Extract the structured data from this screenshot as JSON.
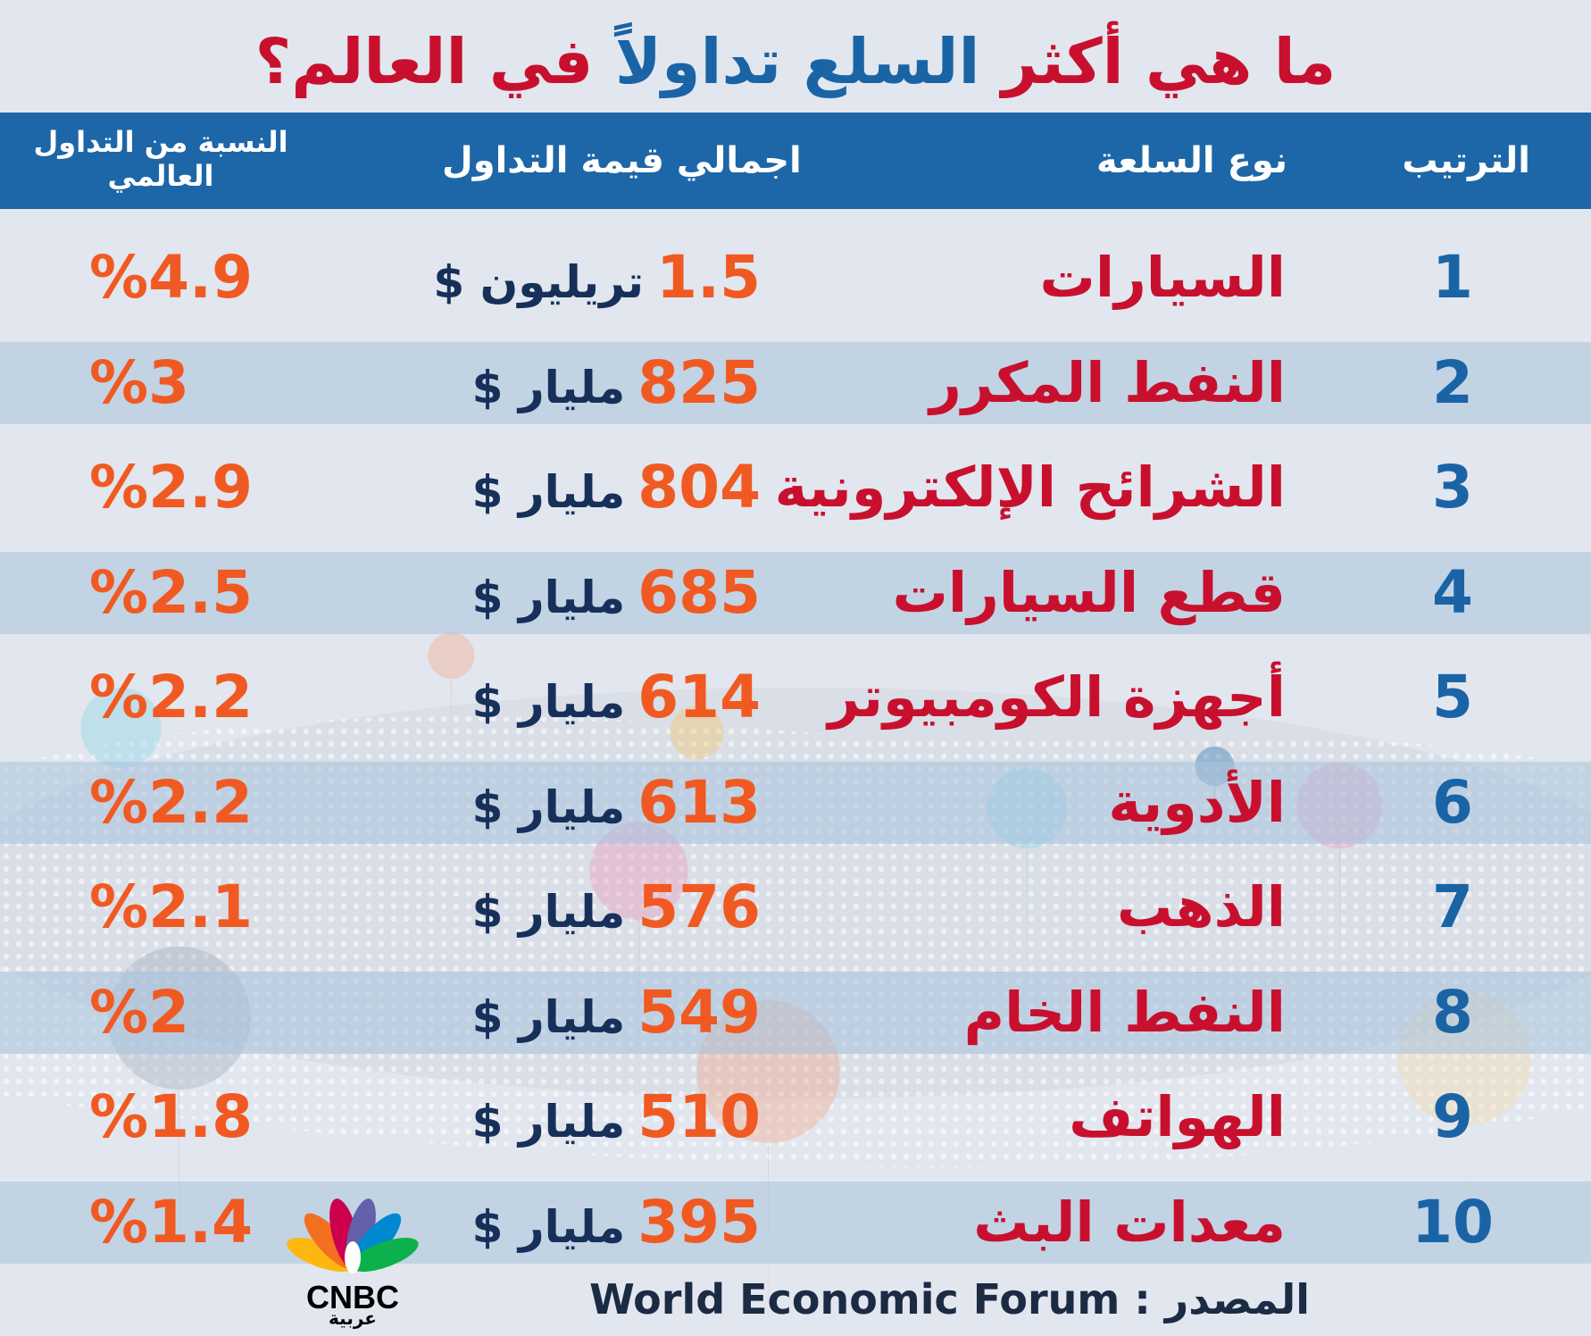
{
  "title": {
    "part1": "ما هي أكثر",
    "part2": "السلع تداولاً",
    "part3": "في العالم؟"
  },
  "header": {
    "rank": "الترتيب",
    "type": "نوع السلعة",
    "value": "اجمالي قيمة التداول",
    "share": "النسبة من التداول العالمي"
  },
  "rows": [
    {
      "rank": "1",
      "type": "السيارات",
      "value": "1.5",
      "unit": "تريليون $",
      "share": "%4.9"
    },
    {
      "rank": "2",
      "type": "النفط المكرر",
      "value": "825",
      "unit": "مليار $",
      "share": "%3"
    },
    {
      "rank": "3",
      "type": "الشرائح الإلكترونية",
      "value": "804",
      "unit": "مليار $",
      "share": "%2.9"
    },
    {
      "rank": "4",
      "type": "قطع السيارات",
      "value": "685",
      "unit": "مليار $",
      "share": "%2.5"
    },
    {
      "rank": "5",
      "type": "أجهزة الكومبيوتر",
      "value": "614",
      "unit": "مليار $",
      "share": "%2.2"
    },
    {
      "rank": "6",
      "type": "الأدوية",
      "value": "613",
      "unit": "مليار $",
      "share": "%2.2"
    },
    {
      "rank": "7",
      "type": "الذهب",
      "value": "576",
      "unit": "مليار $",
      "share": "%2.1"
    },
    {
      "rank": "8",
      "type": "النفط الخام",
      "value": "549",
      "unit": "مليار $",
      "share": "%2"
    },
    {
      "rank": "9",
      "type": "الهواتف",
      "value": "510",
      "unit": "مليار $",
      "share": "%1.8"
    },
    {
      "rank": "10",
      "type": "معدات البث",
      "value": "395",
      "unit": "مليار $",
      "share": "%1.4"
    }
  ],
  "source": {
    "label": "المصدر :",
    "name": "World Economic Forum"
  },
  "logo": {
    "name": "CNBC",
    "sub": "عربية"
  },
  "colors": {
    "title_red": "#c8102e",
    "title_blue": "#1a64a6",
    "header_bg": "#1d67a8",
    "value_orange": "#f05a22",
    "unit_navy": "#16305a"
  }
}
